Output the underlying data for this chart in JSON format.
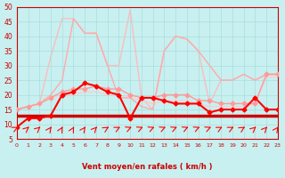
{
  "xlabel": "Vent moyen/en rafales ( km/h )",
  "ylabel": "",
  "xlim": [
    0,
    23
  ],
  "ylim": [
    5,
    50
  ],
  "yticks": [
    5,
    10,
    15,
    20,
    25,
    30,
    35,
    40,
    45,
    50
  ],
  "xticks": [
    0,
    1,
    2,
    3,
    4,
    5,
    6,
    7,
    8,
    9,
    10,
    11,
    12,
    13,
    14,
    15,
    16,
    17,
    18,
    19,
    20,
    21,
    22,
    23
  ],
  "bg_color": "#c8f0f0",
  "grid_color": "#aadddd",
  "series": [
    {
      "x": [
        0,
        1,
        2,
        3,
        4,
        5,
        6,
        7,
        8,
        9,
        10,
        11,
        12,
        13,
        14,
        15,
        16,
        17,
        18,
        19,
        20,
        21,
        22,
        23
      ],
      "y": [
        9,
        12,
        12,
        13,
        20,
        21,
        24,
        23,
        21,
        20,
        12,
        19,
        19,
        18,
        17,
        17,
        17,
        14,
        15,
        15,
        15,
        19,
        15,
        15
      ],
      "color": "#ff0000",
      "marker": "D",
      "markersize": 2.5,
      "linewidth": 1.5,
      "zorder": 5
    },
    {
      "x": [
        0,
        1,
        2,
        3,
        4,
        5,
        6,
        7,
        8,
        9,
        10,
        11,
        12,
        13,
        14,
        15,
        16,
        17,
        18,
        19,
        20,
        21,
        22,
        23
      ],
      "y": [
        13,
        13,
        13,
        13,
        13,
        13,
        13,
        13,
        13,
        13,
        13,
        13,
        13,
        13,
        13,
        13,
        13,
        13,
        13,
        13,
        13,
        13,
        13,
        13
      ],
      "color": "#cc0000",
      "marker": null,
      "markersize": 0,
      "linewidth": 2.5,
      "zorder": 4
    },
    {
      "x": [
        0,
        1,
        2,
        3,
        4,
        5,
        6,
        7,
        8,
        9,
        10,
        11,
        12,
        13,
        14,
        15,
        16,
        17,
        18,
        19,
        20,
        21,
        22,
        23
      ],
      "y": [
        15,
        16,
        17,
        19,
        21,
        22,
        22,
        23,
        22,
        22,
        20,
        19,
        19,
        20,
        20,
        20,
        18,
        18,
        17,
        17,
        17,
        17,
        27,
        27
      ],
      "color": "#ff9999",
      "marker": "D",
      "markersize": 2.5,
      "linewidth": 1.0,
      "zorder": 3
    },
    {
      "x": [
        0,
        1,
        2,
        3,
        4,
        5,
        6,
        7,
        8,
        9,
        10,
        11,
        12,
        13,
        14,
        15,
        16,
        17,
        18,
        19,
        20,
        21,
        22,
        23
      ],
      "y": [
        15,
        16,
        17,
        20,
        25,
        46,
        41,
        41,
        30,
        19,
        19,
        16,
        15,
        35,
        40,
        39,
        35,
        30,
        25,
        25,
        27,
        25,
        27,
        27
      ],
      "color": "#ffaaaa",
      "marker": null,
      "markersize": 0,
      "linewidth": 1.0,
      "zorder": 2
    },
    {
      "x": [
        0,
        1,
        2,
        3,
        4,
        5,
        6,
        7,
        8,
        9,
        10,
        11,
        12,
        13,
        14,
        15,
        16,
        17,
        18,
        19,
        20,
        21,
        22,
        23
      ],
      "y": [
        15,
        16,
        17,
        33,
        46,
        46,
        41,
        41,
        30,
        30,
        49,
        19,
        15,
        35,
        40,
        39,
        35,
        17,
        25,
        25,
        27,
        25,
        27,
        27
      ],
      "color": "#ffbbbb",
      "marker": null,
      "markersize": 0,
      "linewidth": 1.0,
      "zorder": 1
    },
    {
      "x": [
        0,
        1,
        2,
        3,
        4,
        5,
        6,
        7,
        8,
        9,
        10,
        11,
        12,
        13,
        14,
        15,
        16,
        17,
        18,
        19,
        20,
        21,
        22,
        23
      ],
      "y": [
        15,
        16,
        17,
        19,
        20,
        20,
        21,
        21,
        20,
        20,
        19,
        18,
        17,
        18,
        18,
        18,
        17,
        16,
        16,
        16,
        16,
        17,
        26,
        26
      ],
      "color": "#ffcccc",
      "marker": null,
      "markersize": 0,
      "linewidth": 1.0,
      "zorder": 1
    }
  ],
  "wind_arrows": [
    0,
    1,
    2,
    3,
    4,
    5,
    6,
    7,
    8,
    9,
    10,
    11,
    12,
    13,
    14,
    15,
    16,
    17,
    18,
    19,
    20,
    21,
    22,
    23
  ],
  "arrow_color": "#ff0000"
}
